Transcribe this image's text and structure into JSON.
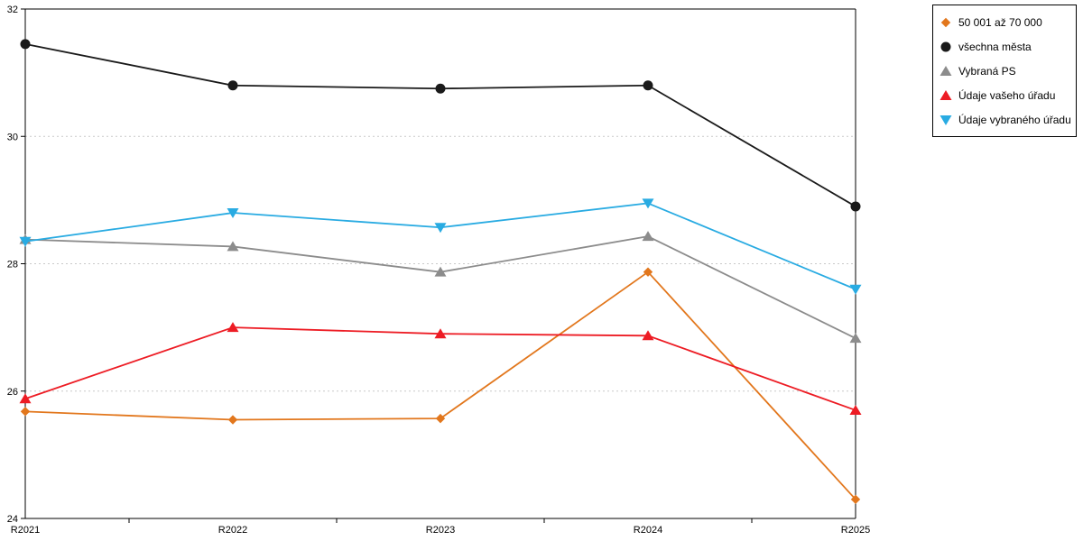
{
  "chart_data": {
    "type": "line",
    "title": "",
    "xlabel": "",
    "ylabel": "",
    "categories": [
      "R2021",
      "R2022",
      "R2023",
      "R2024",
      "R2025"
    ],
    "series": [
      {
        "name": "50 001 až 70 000",
        "color": "#e2771d",
        "marker": "diamond",
        "values": [
          25.68,
          25.55,
          25.57,
          27.87,
          24.3
        ]
      },
      {
        "name": "všechna města",
        "color": "#1a1a1a",
        "marker": "circle",
        "values": [
          31.45,
          30.8,
          30.75,
          30.8,
          28.9
        ]
      },
      {
        "name": "Vybraná PS",
        "color": "#8c8c8c",
        "marker": "triangle-up",
        "values": [
          28.38,
          28.27,
          27.87,
          28.43,
          26.83
        ]
      },
      {
        "name": "Údaje vašeho úřadu",
        "color": "#ed1c24",
        "marker": "triangle-up",
        "values": [
          25.88,
          27.0,
          26.9,
          26.87,
          25.7
        ]
      },
      {
        "name": "Údaje vybraného úřadu",
        "color": "#29abe2",
        "marker": "triangle-down",
        "values": [
          28.35,
          28.8,
          28.57,
          28.95,
          27.6
        ]
      }
    ],
    "ylim": [
      24,
      32
    ],
    "yticks": [
      24,
      26,
      28,
      30,
      32
    ],
    "grid": true,
    "gridline_color": "#c9c9c9",
    "axis_color": "#000000",
    "legend_position": "top-right-outside"
  }
}
